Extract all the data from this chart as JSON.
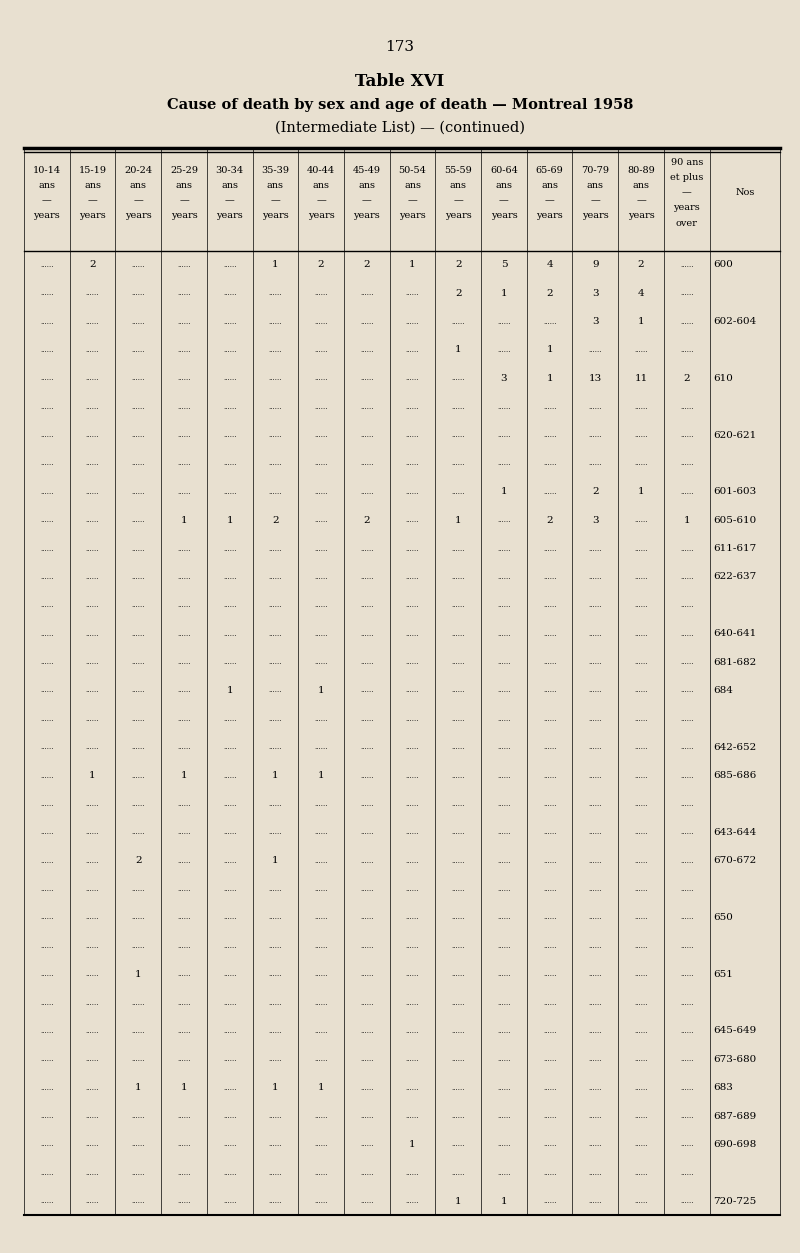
{
  "page_number": "173",
  "title_line1": "Table XVI",
  "title_line2": "Cause of death by sex and age of death — Montreal 1958",
  "title_line3": "(Intermediate List) — (continued)",
  "bg_color": "#e8e0d0",
  "rows": [
    {
      "nos": "600",
      "data": [
        "",
        "2",
        "",
        "",
        "",
        "1",
        "2",
        "2",
        "1",
        "2",
        "5",
        "4",
        "9",
        "2",
        ""
      ]
    },
    {
      "nos": "",
      "data": [
        "",
        "",
        "",
        "",
        "",
        "",
        "",
        "",
        "",
        "2",
        "1",
        "2",
        "3",
        "4",
        ""
      ]
    },
    {
      "nos": "602-604",
      "data": [
        "",
        "",
        "",
        "",
        "",
        "",
        "",
        "",
        "",
        "",
        "",
        "",
        "3",
        "1",
        ""
      ]
    },
    {
      "nos": "",
      "data": [
        "",
        "",
        "",
        "",
        "",
        "",
        "",
        "",
        "",
        "1",
        "",
        "1",
        "",
        "",
        ""
      ]
    },
    {
      "nos": "610",
      "data": [
        "",
        "",
        "",
        "",
        "",
        "",
        "",
        "",
        "",
        "",
        "3",
        "1",
        "13",
        "11",
        "2"
      ]
    },
    {
      "nos": "",
      "data": [
        "",
        "",
        "",
        "",
        "",
        "",
        "",
        "",
        "",
        "",
        "",
        "",
        "",
        "",
        ""
      ]
    },
    {
      "nos": "620-621",
      "data": [
        "",
        "",
        "",
        "",
        "",
        "",
        "",
        "",
        "",
        "",
        "",
        "",
        "",
        "",
        ""
      ]
    },
    {
      "nos": "",
      "data": [
        "",
        "",
        "",
        "",
        "",
        "",
        "",
        "",
        "",
        "",
        "",
        "",
        "",
        "",
        ""
      ]
    },
    {
      "nos": "601-603",
      "data": [
        "",
        "",
        "",
        "",
        "",
        "",
        "",
        "",
        "",
        "",
        "1",
        "",
        "2",
        "1",
        ""
      ]
    },
    {
      "nos": "605-610",
      "data": [
        "",
        "",
        "",
        "1",
        "1",
        "2",
        "",
        "2",
        "",
        "1",
        "",
        "2",
        "3",
        "",
        "1"
      ]
    },
    {
      "nos": "611-617",
      "data": [
        "",
        "",
        "",
        "",
        "",
        "",
        "",
        "",
        "",
        "",
        "",
        "",
        "",
        "",
        ""
      ]
    },
    {
      "nos": "622-637",
      "data": [
        "",
        "",
        "",
        "",
        "",
        "",
        "",
        "",
        "",
        "",
        "",
        "",
        "",
        "",
        ""
      ]
    },
    {
      "nos": "",
      "data": [
        "",
        "",
        "",
        "",
        "",
        "",
        "",
        "",
        "",
        "",
        "",
        "",
        "",
        "",
        ""
      ]
    },
    {
      "nos": "640-641",
      "data": [
        "",
        "",
        "",
        "",
        "",
        "",
        "",
        "",
        "",
        "",
        "",
        "",
        "",
        "",
        ""
      ]
    },
    {
      "nos": "681-682",
      "data": [
        "",
        "",
        "",
        "",
        "",
        "",
        "",
        "",
        "",
        "",
        "",
        "",
        "",
        "",
        ""
      ]
    },
    {
      "nos": "684",
      "data": [
        "",
        "",
        "",
        "",
        "1",
        "",
        "1",
        "",
        "",
        "",
        "",
        "",
        "",
        "",
        ""
      ]
    },
    {
      "nos": "",
      "data": [
        "",
        "",
        "",
        "",
        "",
        "",
        "",
        "",
        "",
        "",
        "",
        "",
        "",
        "",
        ""
      ]
    },
    {
      "nos": "642-652",
      "data": [
        "",
        "",
        "",
        "",
        "",
        "",
        "",
        "",
        "",
        "",
        "",
        "",
        "",
        "",
        ""
      ]
    },
    {
      "nos": "685-686",
      "data": [
        "",
        "1",
        "",
        "1",
        "",
        "1",
        "1",
        "",
        "",
        "",
        "",
        "",
        "",
        "",
        ""
      ]
    },
    {
      "nos": "",
      "data": [
        "",
        "",
        "",
        "",
        "",
        "",
        "",
        "",
        "",
        "",
        "",
        "",
        "",
        "",
        ""
      ]
    },
    {
      "nos": "643-644",
      "data": [
        "",
        "",
        "",
        "",
        "",
        "",
        "",
        "",
        "",
        "",
        "",
        "",
        "",
        "",
        ""
      ]
    },
    {
      "nos": "670-672",
      "data": [
        "",
        "",
        "2",
        "",
        "",
        "1",
        "",
        "",
        "",
        "",
        "",
        "",
        "",
        "",
        ""
      ]
    },
    {
      "nos": "",
      "data": [
        "",
        "",
        "",
        "",
        "",
        "",
        "",
        "",
        "",
        "",
        "",
        "",
        "",
        "",
        ""
      ]
    },
    {
      "nos": "650",
      "data": [
        "",
        "",
        "",
        "",
        "",
        "",
        "",
        "",
        "",
        "",
        "",
        "",
        "",
        "",
        ""
      ]
    },
    {
      "nos": "",
      "data": [
        "",
        "",
        "",
        "",
        "",
        "",
        "",
        "",
        "",
        "",
        "",
        "",
        "",
        "",
        ""
      ]
    },
    {
      "nos": "651",
      "data": [
        "",
        "",
        "1",
        "",
        "",
        "",
        "",
        "",
        "",
        "",
        "",
        "",
        "",
        "",
        ""
      ]
    },
    {
      "nos": "",
      "data": [
        "",
        "",
        "",
        "",
        "",
        "",
        "",
        "",
        "",
        "",
        "",
        "",
        "",
        "",
        ""
      ]
    },
    {
      "nos": "645-649",
      "data": [
        "",
        "",
        "",
        "",
        "",
        "",
        "",
        "",
        "",
        "",
        "",
        "",
        "",
        "",
        ""
      ]
    },
    {
      "nos": "673-680",
      "data": [
        "",
        "",
        "",
        "",
        "",
        "",
        "",
        "",
        "",
        "",
        "",
        "",
        "",
        "",
        ""
      ]
    },
    {
      "nos": "683",
      "data": [
        "",
        "",
        "1",
        "1",
        "",
        "1",
        "1",
        "",
        "",
        "",
        "",
        "",
        "",
        "",
        ""
      ]
    },
    {
      "nos": "687-689",
      "data": [
        "",
        "",
        "",
        "",
        "",
        "",
        "",
        "",
        "",
        "",
        "",
        "",
        "",
        "",
        ""
      ]
    },
    {
      "nos": "690-698",
      "data": [
        "",
        "",
        "",
        "",
        "",
        "",
        "",
        "",
        "1",
        "",
        "",
        "",
        "",
        "",
        ""
      ]
    },
    {
      "nos": "",
      "data": [
        "",
        "",
        "",
        "",
        "",
        "",
        "",
        "",
        "",
        "",
        "",
        "",
        "",
        "",
        ""
      ]
    },
    {
      "nos": "720-725",
      "data": [
        "",
        "",
        "",
        "",
        "",
        "",
        "",
        "",
        "",
        "1",
        "1",
        "",
        "",
        "",
        ""
      ]
    }
  ]
}
